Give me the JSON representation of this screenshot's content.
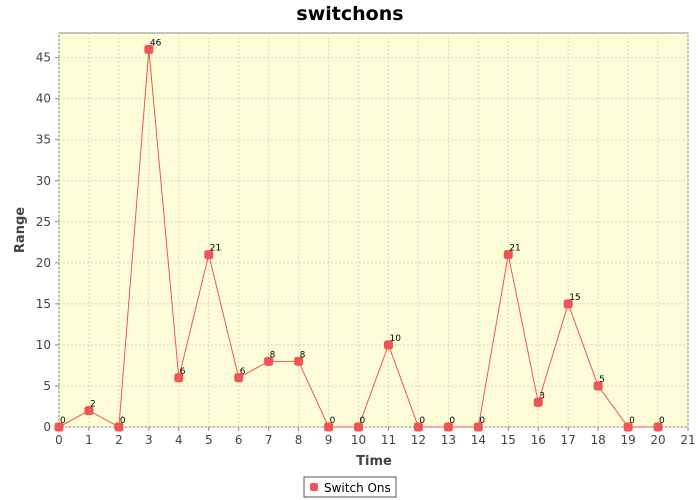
{
  "chart_data": {
    "type": "line",
    "title": "switchons",
    "xlabel": "Time",
    "ylabel": "Range",
    "xlim": [
      0,
      21
    ],
    "ylim": [
      0,
      48
    ],
    "x_ticks": [
      0,
      1,
      2,
      3,
      4,
      5,
      6,
      7,
      8,
      9,
      10,
      11,
      12,
      13,
      14,
      15,
      16,
      17,
      18,
      19,
      20,
      21
    ],
    "y_ticks": [
      0,
      5,
      10,
      15,
      20,
      25,
      30,
      35,
      40,
      45
    ],
    "grid": true,
    "legend_position": "bottom",
    "series": [
      {
        "name": "Switch Ons",
        "color": "#f05555",
        "x": [
          0,
          1,
          2,
          3,
          4,
          5,
          6,
          7,
          8,
          9,
          10,
          11,
          12,
          13,
          14,
          15,
          16,
          17,
          18,
          19,
          20
        ],
        "values": [
          0,
          2,
          0,
          46,
          6,
          21,
          6,
          8,
          8,
          0,
          0,
          10,
          0,
          0,
          0,
          21,
          3,
          15,
          5,
          0,
          0
        ]
      }
    ]
  },
  "colors": {
    "plot_background": "#fdfdd8",
    "gridline": "#d9d9b8",
    "axis": "#888888"
  }
}
